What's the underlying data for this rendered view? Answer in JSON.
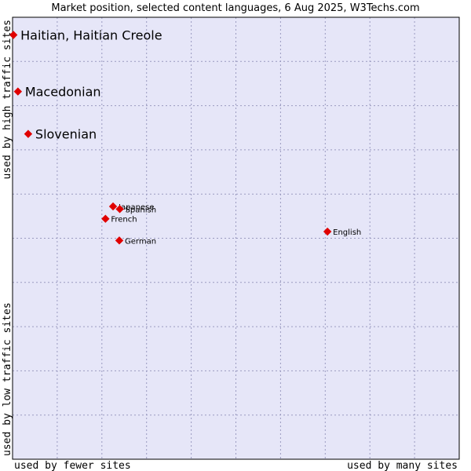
{
  "chart_data": {
    "type": "scatter",
    "title": "Market position, selected content languages, 6 Aug 2025, W3Techs.com",
    "xlabel_left": "used by fewer sites",
    "xlabel_right": "used by many sites",
    "ylabel_bottom": "used by low traffic sites",
    "ylabel_top": "used by high traffic sites",
    "xlim": [
      0,
      100
    ],
    "ylim": [
      0,
      100
    ],
    "grid": true,
    "colors": {
      "plot_background": "#e6e6f8",
      "marker": "#e00000",
      "grid": "#9a9ac0",
      "border": "#000000"
    },
    "points": [
      {
        "name": "Haitian, Haitian Creole",
        "x": 0.2,
        "y": 96.0,
        "size": "large"
      },
      {
        "name": "Macedonian",
        "x": 1.2,
        "y": 83.2,
        "size": "large"
      },
      {
        "name": "Slovenian",
        "x": 3.5,
        "y": 73.6,
        "size": "large"
      },
      {
        "name": "Japanese",
        "x": 22.5,
        "y": 57.2,
        "size": "small"
      },
      {
        "name": "Spanish",
        "x": 24.0,
        "y": 56.6,
        "size": "small"
      },
      {
        "name": "French",
        "x": 20.8,
        "y": 54.4,
        "size": "small"
      },
      {
        "name": "German",
        "x": 23.9,
        "y": 49.5,
        "size": "small"
      },
      {
        "name": "English",
        "x": 70.5,
        "y": 51.5,
        "size": "small"
      }
    ]
  }
}
